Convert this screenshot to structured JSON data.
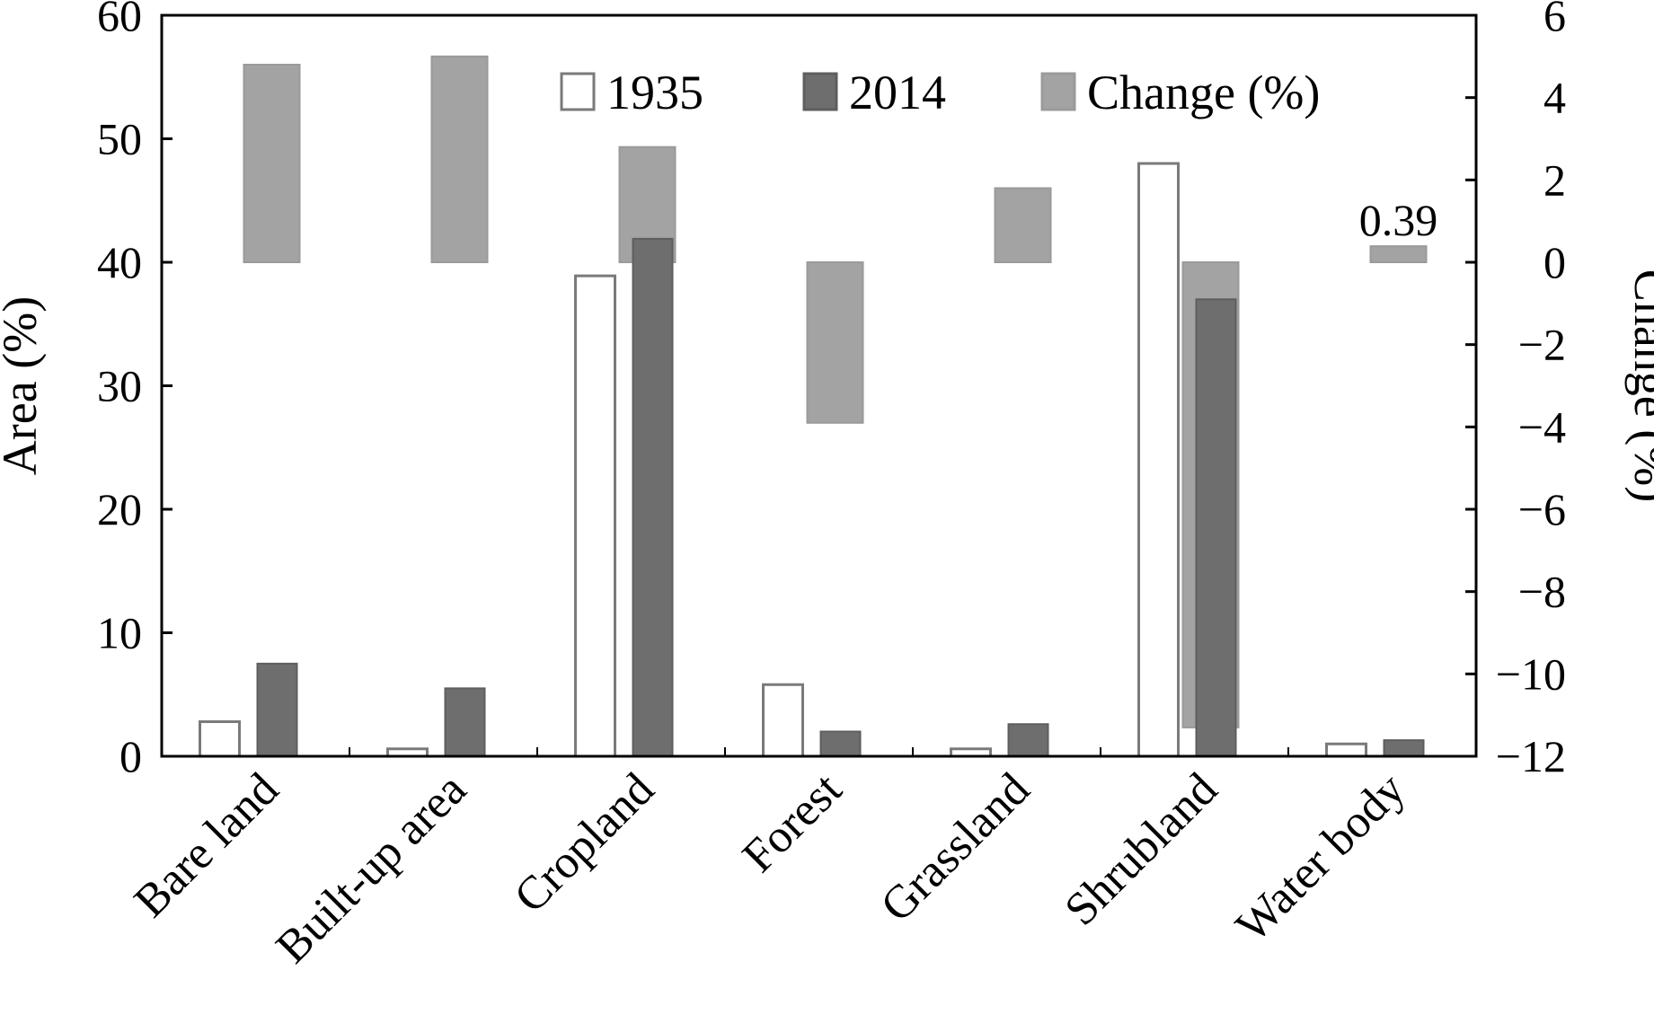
{
  "chart_data": {
    "type": "bar",
    "categories": [
      "Bare land",
      "Built-up area",
      "Cropland",
      "Forest",
      "Grassland",
      "Shrubland",
      "Water body"
    ],
    "series": [
      {
        "name": "1935",
        "axis": "left",
        "values": [
          2.8,
          0.6,
          38.9,
          5.8,
          0.6,
          48.0,
          1.0
        ],
        "fill": "#ffffff",
        "stroke": "#7a7a7a"
      },
      {
        "name": "2014",
        "axis": "left",
        "values": [
          7.5,
          5.5,
          41.9,
          2.0,
          2.6,
          37.0,
          1.3
        ],
        "fill": "#6e6e6e",
        "stroke": "#5e5e5e"
      },
      {
        "name": "Change (%)",
        "axis": "right",
        "values": [
          4.8,
          5.0,
          2.8,
          -3.9,
          1.8,
          -11.3,
          0.39
        ],
        "fill": "#a3a3a3",
        "stroke": "#9a9a9a"
      }
    ],
    "annotations": [
      {
        "category": "Water body",
        "text": "0.39"
      }
    ],
    "ylabel": "Area (%)",
    "y2label": "Change (%)",
    "ylim": [
      0,
      60
    ],
    "yticks": [
      0,
      10,
      20,
      30,
      40,
      50,
      60
    ],
    "y2lim": [
      -12,
      6
    ],
    "y2ticks": [
      -12,
      -10,
      -8,
      -6,
      -4,
      -2,
      0,
      2,
      4,
      6
    ],
    "y2tick_labels": [
      "−12",
      "−10",
      "−8",
      "−6",
      "−4",
      "−2",
      "0",
      "2",
      "4",
      "6"
    ],
    "grid": false,
    "legend_position": "top-right"
  }
}
